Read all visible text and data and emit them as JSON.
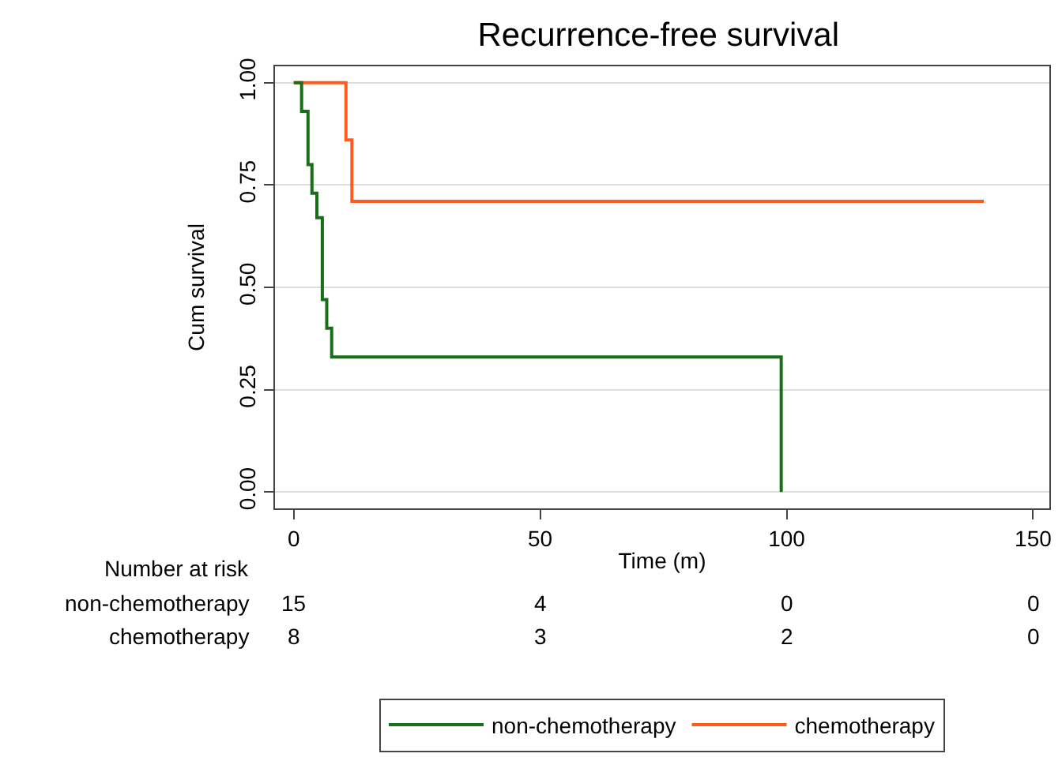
{
  "chart_data": {
    "type": "step",
    "title": "Recurrence-free survival",
    "xlabel": "Time (m)",
    "ylabel": "Cum survival",
    "series": [
      {
        "name": "non-chemotherapy",
        "color": "#1a6e1a",
        "x": [
          0,
          1.6,
          2.9,
          3.7,
          4.7,
          5.8,
          6.7,
          7.7,
          98.9
        ],
        "values": [
          1,
          0.93,
          0.8,
          0.73,
          0.67,
          0.47,
          0.4,
          0.33,
          0
        ]
      },
      {
        "name": "chemotherapy",
        "color": "#ff5a1f",
        "x": [
          0,
          10.6,
          11.8,
          140
        ],
        "values": [
          1,
          0.86,
          0.71,
          0.71
        ]
      }
    ],
    "xlim": [
      -3.8,
      153.3
    ],
    "ylim": [
      -0.04,
      1.04
    ],
    "xticks": [
      0,
      50,
      100,
      150
    ],
    "yticks": [
      {
        "value": 0,
        "label": "0.00"
      },
      {
        "value": 0.25,
        "label": "0.25"
      },
      {
        "value": 0.5,
        "label": "0.50"
      },
      {
        "value": 0.75,
        "label": "0.75"
      },
      {
        "value": 1,
        "label": "1.00"
      }
    ],
    "grid": "y",
    "legend": "bottom",
    "marker": "none",
    "line_style": "solid",
    "annotations": [
      "Number at risk",
      "non-chemotherapy",
      "15",
      "4",
      "0",
      "0",
      "chemotherapy",
      "8",
      "3",
      "2",
      "0"
    ]
  }
}
